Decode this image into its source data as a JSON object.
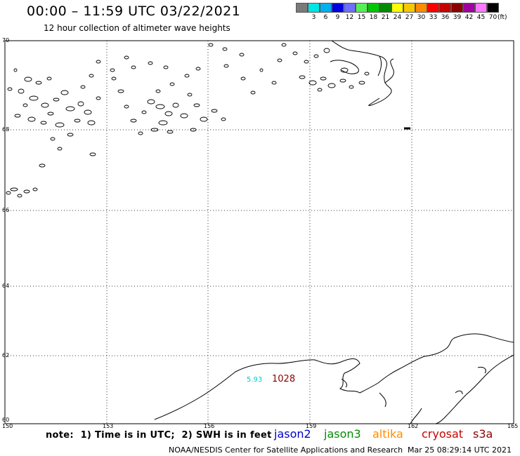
{
  "header": {
    "title": "00:00 – 11:59 UTC 03/22/2021",
    "subtitle": "12 hour collection of altimeter wave heights"
  },
  "legend": {
    "unit": "(ft)",
    "items": [
      {
        "label": "",
        "color": "#7a7a7a"
      },
      {
        "label": "3",
        "color": "#00e5e5"
      },
      {
        "label": "6",
        "color": "#00b0f0"
      },
      {
        "label": "9",
        "color": "#0000e0"
      },
      {
        "label": "12",
        "color": "#6e6eff"
      },
      {
        "label": "15",
        "color": "#55f055"
      },
      {
        "label": "18",
        "color": "#00c800"
      },
      {
        "label": "21",
        "color": "#008c00"
      },
      {
        "label": "24",
        "color": "#ffff00"
      },
      {
        "label": "27",
        "color": "#f5c800"
      },
      {
        "label": "30",
        "color": "#ff8c00"
      },
      {
        "label": "33",
        "color": "#ff0000"
      },
      {
        "label": "36",
        "color": "#c80000"
      },
      {
        "label": "39",
        "color": "#8c0000"
      },
      {
        "label": "42",
        "color": "#a000a0"
      },
      {
        "label": "45",
        "color": "#ff78ff"
      },
      {
        "label": "70",
        "color": "#000000"
      }
    ]
  },
  "axes": {
    "latitudes": [
      "70",
      "68",
      "66",
      "64",
      "62",
      "60"
    ],
    "longitudes": [
      "150",
      "153",
      "156",
      "159",
      "162",
      "165"
    ]
  },
  "observations": [
    {
      "value": "5.93",
      "color": "#00cccc"
    },
    {
      "value": "1028",
      "color": "#8c0000"
    }
  ],
  "footer": {
    "note": "note:  1) Time is in UTC;  2) SWH is in feet",
    "satellites": [
      {
        "name": "jason2",
        "color": "#0000cc"
      },
      {
        "name": "jason3",
        "color": "#008c00"
      },
      {
        "name": "altika",
        "color": "#ff8c00"
      },
      {
        "name": "cryosat",
        "color": "#cc0000"
      },
      {
        "name": "s3a",
        "color": "#8c0000"
      }
    ],
    "credit": "NOAA/NESDIS Center for Satellite Applications and Research",
    "timestamp": "Mar 25 08:29:14 UTC 2021"
  }
}
